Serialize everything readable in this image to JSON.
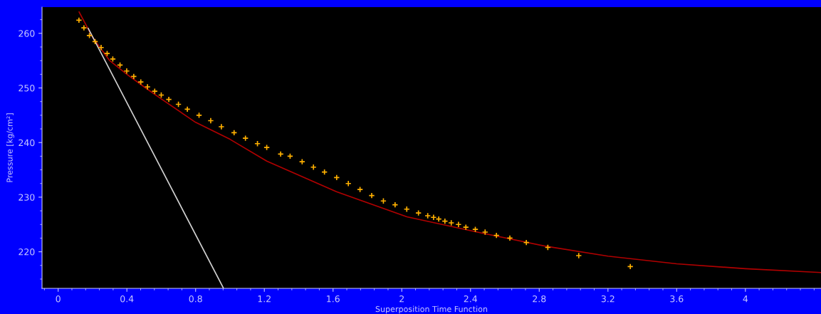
{
  "chart_data": {
    "type": "scatter",
    "xlabel": "Superposition Time Function",
    "ylabel": "Pressure [kg/cm²]",
    "xlim": [
      -0.094,
      4.44
    ],
    "ylim": [
      213.3,
      264.8
    ],
    "xticks": [
      0,
      0.4,
      0.8,
      1.2,
      1.6,
      2,
      2.4,
      2.8,
      3.2,
      3.6,
      4
    ],
    "yticks": [
      220,
      230,
      240,
      250,
      260
    ],
    "grid": false,
    "legend": false,
    "series": [
      {
        "marker": "cross",
        "color": "#ffb000",
        "x": [
          0.121,
          0.15,
          0.182,
          0.215,
          0.25,
          0.285,
          0.318,
          0.36,
          0.399,
          0.44,
          0.481,
          0.52,
          0.562,
          0.6,
          0.644,
          0.7,
          0.752,
          0.82,
          0.888,
          0.95,
          1.024,
          1.09,
          1.16,
          1.214,
          1.295,
          1.35,
          1.42,
          1.486,
          1.55,
          1.621,
          1.689,
          1.757,
          1.825,
          1.893,
          1.961,
          2.029,
          2.097,
          2.151,
          2.185,
          2.215,
          2.251,
          2.288,
          2.33,
          2.373,
          2.428,
          2.485,
          2.551,
          2.629,
          2.725,
          2.85,
          3.03,
          3.33
        ],
        "values": [
          262.4,
          261.0,
          259.6,
          258.5,
          257.4,
          256.3,
          255.3,
          254.2,
          253.1,
          252.1,
          251.1,
          250.2,
          249.4,
          248.7,
          247.9,
          247.0,
          246.1,
          245.0,
          244.0,
          242.9,
          241.8,
          240.8,
          239.8,
          239.1,
          237.9,
          237.5,
          236.5,
          235.5,
          234.6,
          233.6,
          232.5,
          231.4,
          230.3,
          229.3,
          228.6,
          227.8,
          227.1,
          226.6,
          226.3,
          226.0,
          225.6,
          225.3,
          225.0,
          224.5,
          224.1,
          223.6,
          223.0,
          222.5,
          221.7,
          220.8,
          219.3,
          217.3
        ]
      },
      {
        "type": "line",
        "color": "#b00000",
        "x": [
          0.122,
          0.2,
          0.3,
          0.4,
          0.5,
          0.6,
          0.8,
          1.0,
          1.214,
          1.62,
          2.03,
          2.44,
          2.84,
          3.2,
          3.6,
          4.0,
          4.44
        ],
        "values": [
          263.9,
          259.3,
          255.0,
          252.5,
          250.2,
          248.0,
          243.7,
          240.6,
          236.6,
          231.0,
          226.4,
          223.6,
          221.0,
          219.2,
          217.8,
          216.9,
          216.2
        ]
      },
      {
        "type": "line",
        "color": "#d0d0d0",
        "x": [
          0.175,
          0.961
        ],
        "values": [
          260.9,
          213.4
        ]
      }
    ]
  }
}
